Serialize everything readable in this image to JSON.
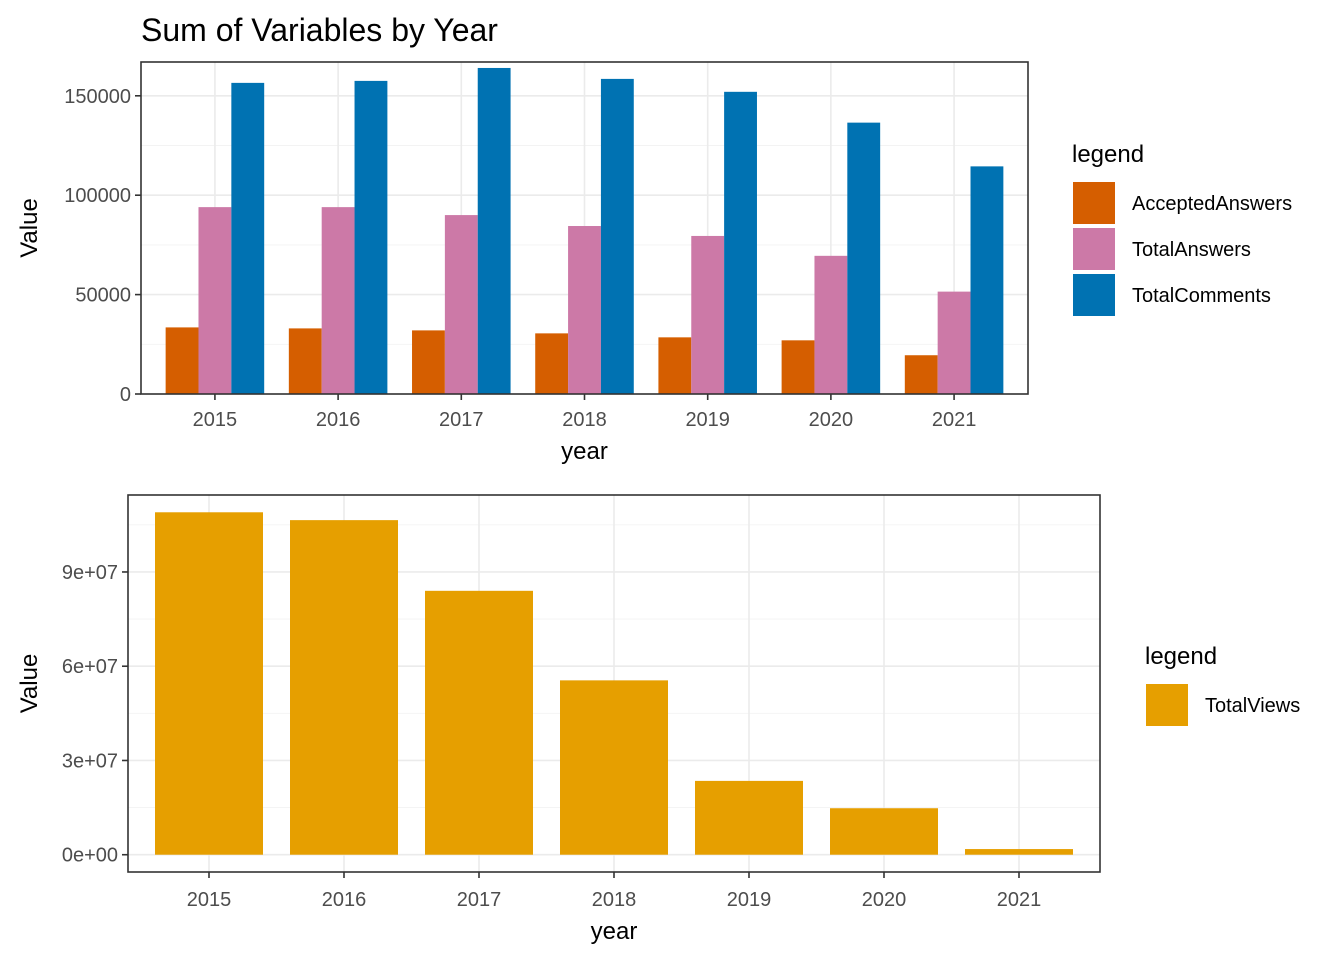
{
  "chart_data": [
    {
      "type": "bar",
      "title": "Sum of Variables by Year",
      "xlabel": "year",
      "ylabel": "Value",
      "categories": [
        "2015",
        "2016",
        "2017",
        "2018",
        "2019",
        "2020",
        "2021"
      ],
      "ylim": [
        0,
        167000
      ],
      "yticks": [
        0,
        50000,
        100000,
        150000
      ],
      "ytick_labels": [
        "0",
        "50000",
        "100000",
        "150000"
      ],
      "grid": true,
      "legend": {
        "title": "legend",
        "position": "right"
      },
      "series": [
        {
          "name": "AcceptedAnswers",
          "color": "#D55E00",
          "values": [
            33500,
            33000,
            32000,
            30500,
            28500,
            27000,
            19500
          ]
        },
        {
          "name": "TotalAnswers",
          "color": "#CC79A7",
          "values": [
            94000,
            94000,
            90000,
            84500,
            79500,
            69500,
            51500
          ]
        },
        {
          "name": "TotalComments",
          "color": "#0072B2",
          "values": [
            156500,
            157500,
            164000,
            158500,
            152000,
            136500,
            114500
          ]
        }
      ]
    },
    {
      "type": "bar",
      "title": "",
      "xlabel": "year",
      "ylabel": "Value",
      "categories": [
        "2015",
        "2016",
        "2017",
        "2018",
        "2019",
        "2020",
        "2021"
      ],
      "ylim": [
        -5500000,
        114500000
      ],
      "yticks": [
        0,
        30000000,
        60000000,
        90000000
      ],
      "ytick_labels": [
        "0e+00",
        "3e+07",
        "6e+07",
        "9e+07"
      ],
      "grid": true,
      "legend": {
        "title": "legend",
        "position": "right"
      },
      "series": [
        {
          "name": "TotalViews",
          "color": "#E69F00",
          "values": [
            109000000,
            106500000,
            84000000,
            55500000,
            23500000,
            14800000,
            1800000
          ]
        }
      ]
    }
  ]
}
